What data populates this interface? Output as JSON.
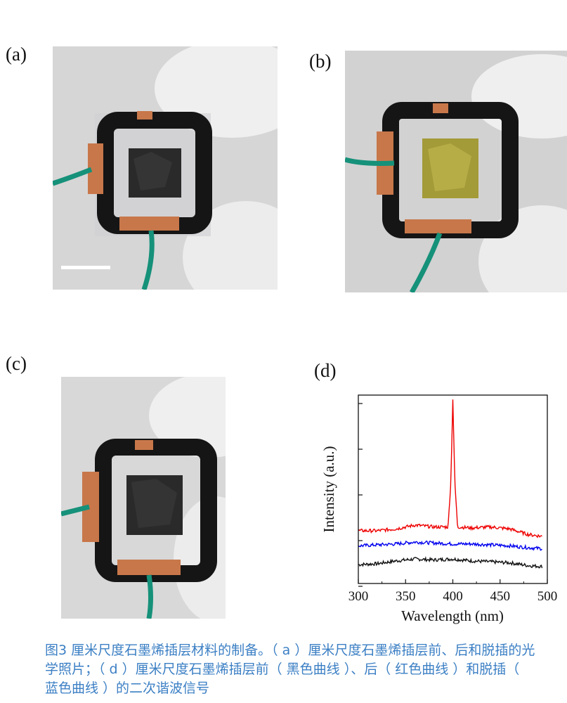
{
  "panels": {
    "a": {
      "label": "(a)"
    },
    "b": {
      "label": "(b)"
    },
    "c": {
      "label": "(c)"
    },
    "d": {
      "label": "(d)"
    }
  },
  "chart_data": {
    "type": "line",
    "xlabel": "Wavelength (nm)",
    "ylabel": "Intensity (a.u.)",
    "xlim": [
      300,
      500
    ],
    "ylim": [
      0,
      1
    ],
    "xticks": [
      300,
      350,
      400,
      450,
      500
    ],
    "yticks_labeled": false,
    "grid": false,
    "series": [
      {
        "color": "#111111",
        "x": [
          300,
          320,
          340,
          360,
          380,
          400,
          420,
          440,
          460,
          480,
          495
        ],
        "y": [
          0.1,
          0.105,
          0.12,
          0.13,
          0.125,
          0.13,
          0.12,
          0.115,
          0.11,
          0.095,
          0.09
        ]
      },
      {
        "color": "#0000ee",
        "x": [
          300,
          320,
          340,
          360,
          380,
          400,
          420,
          440,
          460,
          480,
          495
        ],
        "y": [
          0.2,
          0.205,
          0.21,
          0.22,
          0.215,
          0.21,
          0.21,
          0.205,
          0.2,
          0.19,
          0.185
        ]
      },
      {
        "color": "#ee0000",
        "x": [
          300,
          320,
          340,
          360,
          380,
          395,
          398,
          400,
          402,
          405,
          420,
          440,
          460,
          480,
          495
        ],
        "y": [
          0.28,
          0.28,
          0.29,
          0.31,
          0.3,
          0.3,
          0.55,
          0.98,
          0.55,
          0.3,
          0.295,
          0.3,
          0.29,
          0.26,
          0.25
        ]
      }
    ]
  },
  "caption": "图3 厘米尺度石墨烯插层材料的制备。（ a ）厘米尺度石墨烯插层前、后和脱插的光学照片；（ d ）厘米尺度石墨烯插层前（ 黑色曲线 ）、后（ 红色曲线 ）和脱插（ 蓝色曲线 ）的二次谐波信号",
  "colors": {
    "copper": "#c8774a",
    "epoxy": "#151515",
    "wire": "#16917a",
    "glove": "#ededed",
    "gold_sample": "#a39a38",
    "dark_sample": "#2a2a2a"
  }
}
